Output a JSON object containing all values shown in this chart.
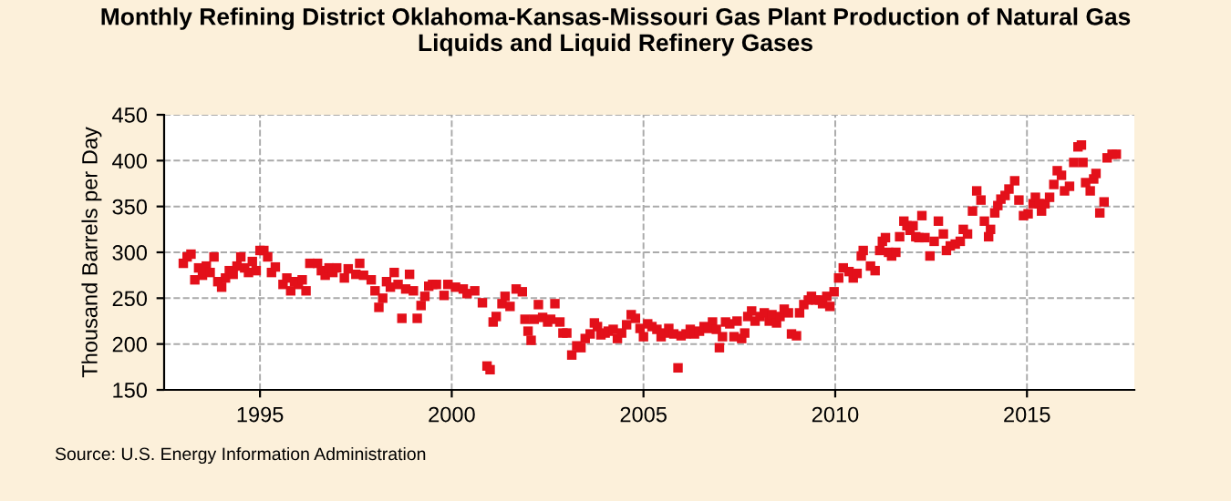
{
  "chart_data": {
    "type": "scatter",
    "title": "Monthly Refining District Oklahoma-Kansas-Missouri Gas Plant Production of Natural Gas\nLiquids and Liquid Refinery Gases",
    "ylabel": "Thousand Barrels per Day",
    "annotations": [
      "Source: U.S. Energy Information Administration"
    ],
    "xlim": [
      1992.5,
      2017.8
    ],
    "xticks": [
      1995,
      2000,
      2005,
      2010,
      2015
    ],
    "ylim": [
      150,
      450
    ],
    "yticks": [
      150,
      200,
      250,
      300,
      350,
      400,
      450
    ],
    "grid": true,
    "marker": "square",
    "legend": false,
    "series": [
      {
        "color": "#e3101a",
        "x": [
          1993.0,
          1993.1,
          1993.2,
          1993.3,
          1993.4,
          1993.5,
          1993.6,
          1993.7,
          1993.8,
          1993.9,
          1994.0,
          1994.1,
          1994.2,
          1994.3,
          1994.4,
          1994.5,
          1994.6,
          1994.7,
          1994.8,
          1994.9,
          1995.0,
          1995.1,
          1995.2,
          1995.3,
          1995.4,
          1995.6,
          1995.7,
          1995.8,
          1995.9,
          1996.0,
          1996.1,
          1996.2,
          1996.3,
          1996.5,
          1996.6,
          1996.7,
          1996.8,
          1996.9,
          1997.0,
          1997.2,
          1997.3,
          1997.5,
          1997.6,
          1997.7,
          1997.9,
          1998.0,
          1998.1,
          1998.2,
          1998.3,
          1998.4,
          1998.5,
          1998.6,
          1998.7,
          1998.8,
          1998.9,
          1999.0,
          1999.1,
          1999.2,
          1999.3,
          1999.4,
          1999.5,
          1999.6,
          1999.8,
          1999.9,
          2000.1,
          2000.3,
          2000.4,
          2000.6,
          2000.8,
          2000.92,
          2001.0,
          2001.08,
          2001.16,
          2001.31,
          2001.39,
          2001.52,
          2001.68,
          2001.84,
          2001.91,
          2001.99,
          2002.07,
          2002.15,
          2002.26,
          2002.37,
          2002.5,
          2002.58,
          2002.69,
          2002.82,
          2002.9,
          2003.0,
          2003.13,
          2003.26,
          2003.37,
          2003.48,
          2003.61,
          2003.72,
          2003.8,
          2003.89,
          2004.0,
          2004.08,
          2004.21,
          2004.32,
          2004.43,
          2004.56,
          2004.68,
          2004.79,
          2004.91,
          2005.0,
          2005.11,
          2005.22,
          2005.35,
          2005.46,
          2005.55,
          2005.66,
          2005.79,
          2005.9,
          2005.98,
          2006.11,
          2006.22,
          2006.33,
          2006.46,
          2006.58,
          2006.69,
          2006.8,
          2006.9,
          2006.98,
          2007.06,
          2007.14,
          2007.25,
          2007.36,
          2007.44,
          2007.56,
          2007.64,
          2007.72,
          2007.82,
          2007.91,
          2008.04,
          2008.15,
          2008.28,
          2008.35,
          2008.47,
          2008.56,
          2008.67,
          2008.78,
          2008.86,
          2008.99,
          2009.07,
          2009.18,
          2009.3,
          2009.38,
          2009.49,
          2009.59,
          2009.67,
          2009.78,
          2009.86,
          2009.97,
          2010.09,
          2010.21,
          2010.36,
          2010.47,
          2010.57,
          2010.68,
          2010.73,
          2010.92,
          2011.04,
          2011.16,
          2011.23,
          2011.31,
          2011.39,
          2011.47,
          2011.58,
          2011.68,
          2011.79,
          2011.87,
          2011.95,
          2012.03,
          2012.1,
          2012.18,
          2012.26,
          2012.34,
          2012.47,
          2012.58,
          2012.69,
          2012.82,
          2012.9,
          2013.0,
          2013.13,
          2013.26,
          2013.34,
          2013.45,
          2013.58,
          2013.69,
          2013.8,
          2013.89,
          2014.0,
          2014.05,
          2014.16,
          2014.24,
          2014.32,
          2014.43,
          2014.53,
          2014.68,
          2014.79,
          2014.91,
          2015.03,
          2015.16,
          2015.22,
          2015.32,
          2015.38,
          2015.47,
          2015.59,
          2015.7,
          2015.79,
          2015.9,
          2015.98,
          2016.11,
          2016.22,
          2016.33,
          2016.42,
          2016.46,
          2016.53,
          2016.65,
          2016.74,
          2016.8,
          2016.9,
          2017.01,
          2017.09,
          2017.22,
          2017.33
        ],
        "values": [
          288,
          295,
          298,
          270,
          283,
          275,
          285,
          278,
          295,
          268,
          262,
          272,
          280,
          276,
          285,
          295,
          283,
          278,
          290,
          280,
          302,
          302,
          295,
          278,
          284,
          265,
          272,
          258,
          268,
          265,
          270,
          258,
          288,
          288,
          280,
          275,
          283,
          278,
          283,
          272,
          282,
          276,
          288,
          275,
          270,
          258,
          240,
          250,
          268,
          262,
          278,
          265,
          228,
          260,
          276,
          258,
          228,
          242,
          252,
          263,
          265,
          265,
          253,
          265,
          262,
          260,
          255,
          258,
          245,
          176,
          172,
          224,
          230,
          244,
          252,
          241,
          260,
          257,
          227,
          214,
          204,
          227,
          243,
          229,
          224,
          227,
          244,
          224,
          212,
          212,
          188,
          198,
          196,
          206,
          211,
          223,
          219,
          210,
          212,
          214,
          216,
          206,
          212,
          221,
          232,
          228,
          217,
          208,
          222,
          219,
          216,
          208,
          212,
          217,
          211,
          174,
          209,
          211,
          216,
          211,
          214,
          219,
          217,
          224,
          216,
          196,
          208,
          224,
          222,
          208,
          225,
          206,
          212,
          230,
          236,
          225,
          230,
          234,
          225,
          232,
          223,
          230,
          238,
          234,
          211,
          209,
          234,
          243,
          248,
          252,
          248,
          248,
          244,
          252,
          241,
          257,
          272,
          283,
          279,
          272,
          277,
          296,
          302,
          285,
          280,
          302,
          312,
          316,
          300,
          296,
          300,
          317,
          334,
          329,
          324,
          329,
          317,
          316,
          340,
          316,
          296,
          312,
          334,
          320,
          302,
          307,
          309,
          312,
          325,
          320,
          345,
          367,
          357,
          334,
          317,
          325,
          343,
          351,
          358,
          362,
          369,
          378,
          357,
          340,
          342,
          353,
          360,
          353,
          345,
          353,
          360,
          374,
          389,
          384,
          367,
          372,
          398,
          415,
          417,
          398,
          376,
          367,
          380,
          386,
          343,
          355,
          403,
          407,
          407
        ]
      }
    ]
  }
}
